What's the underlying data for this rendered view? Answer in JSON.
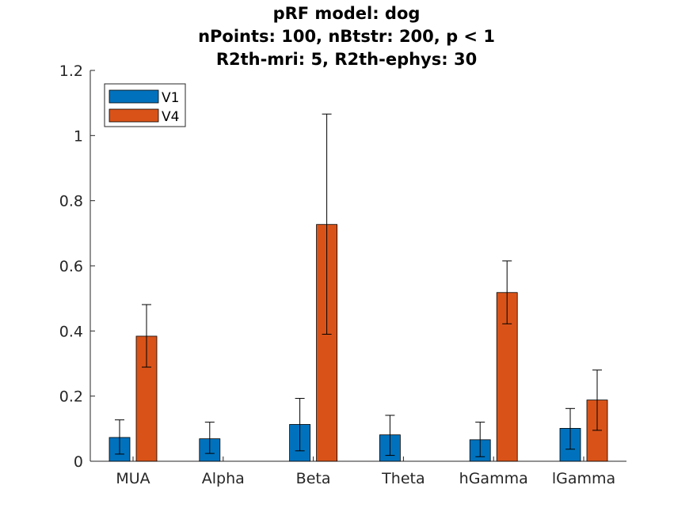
{
  "title_lines": [
    "pRF model: dog",
    "nPoints: 100, nBtstr: 200, p < 1",
    "R2th-mri: 5, R2th-ephys: 30"
  ],
  "chart_data": {
    "type": "bar",
    "title": "pRF model: dog / nPoints: 100, nBtstr: 200, p < 1 / R2th-mri: 5, R2th-ephys: 30",
    "xlabel": "",
    "ylabel": "",
    "categories": [
      "MUA",
      "Alpha",
      "Beta",
      "Theta",
      "hGamma",
      "lGamma"
    ],
    "ylim": [
      0,
      1.2
    ],
    "yticks": [
      0,
      0.2,
      0.4,
      0.6,
      0.8,
      1,
      1.2
    ],
    "ytick_labels": [
      "0",
      "0.2",
      "0.4",
      "0.6",
      "0.8",
      "1",
      "1.2"
    ],
    "grid": false,
    "legend_position": "top-left",
    "series": [
      {
        "name": "V1",
        "color": "#0072BD",
        "values": [
          0.073,
          0.069,
          0.113,
          0.081,
          0.066,
          0.101
        ],
        "err_low": [
          0.022,
          0.024,
          0.032,
          0.018,
          0.014,
          0.037
        ],
        "err_high": [
          0.127,
          0.12,
          0.193,
          0.141,
          0.12,
          0.162
        ]
      },
      {
        "name": "V4",
        "color": "#D95319",
        "values": [
          0.384,
          null,
          0.727,
          null,
          0.518,
          0.188
        ],
        "err_low": [
          0.289,
          null,
          0.39,
          null,
          0.422,
          0.095
        ],
        "err_high": [
          0.481,
          null,
          1.066,
          null,
          0.615,
          0.28
        ]
      }
    ]
  }
}
